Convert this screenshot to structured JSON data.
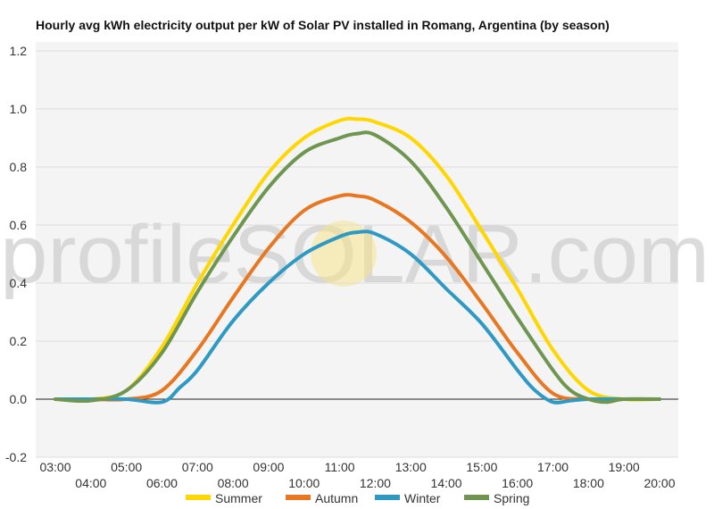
{
  "chart_data": {
    "type": "line",
    "title": "Hourly avg kWh electricity output per kW of Solar PV installed in Romang, Argentina (by season)",
    "xlabel": "",
    "ylabel": "",
    "x_ticks": [
      "03:00",
      "04:00",
      "05:00",
      "06:00",
      "07:00",
      "08:00",
      "09:00",
      "10:00",
      "11:00",
      "12:00",
      "13:00",
      "14:00",
      "15:00",
      "16:00",
      "17:00",
      "18:00",
      "19:00",
      "20:00"
    ],
    "y_ticks": [
      "1.2",
      "1.0",
      "0.8",
      "0.6",
      "0.4",
      "0.2",
      "0.0",
      "-0.2"
    ],
    "ylim": [
      -0.2,
      1.2
    ],
    "grid": true,
    "legend_position": "bottom",
    "watermark": "profileSOLAR.com",
    "series": [
      {
        "name": "Summer",
        "color": "#FFD700",
        "x": [
          3,
          4,
          5,
          6,
          7,
          8,
          9,
          10,
          11,
          11.5,
          12,
          13,
          14,
          15,
          16,
          17,
          18,
          19,
          20
        ],
        "values": [
          0,
          0,
          0.03,
          0.18,
          0.4,
          0.6,
          0.78,
          0.9,
          0.96,
          0.965,
          0.955,
          0.9,
          0.77,
          0.58,
          0.38,
          0.17,
          0.03,
          0,
          0
        ]
      },
      {
        "name": "Autumn",
        "color": "#E87722",
        "x": [
          3,
          4,
          5,
          6,
          7,
          8,
          9,
          10,
          11,
          11.5,
          12,
          13,
          14,
          15,
          16,
          17,
          18,
          19,
          20
        ],
        "values": [
          0,
          0,
          0,
          0.03,
          0.17,
          0.35,
          0.52,
          0.65,
          0.7,
          0.7,
          0.685,
          0.61,
          0.49,
          0.33,
          0.16,
          0.02,
          0,
          0,
          0
        ]
      },
      {
        "name": "Winter",
        "color": "#2E9AC4",
        "x": [
          3,
          4,
          5,
          6,
          6.5,
          7,
          8,
          9,
          10,
          11,
          11.5,
          12,
          13,
          14,
          15,
          16,
          16.5,
          17,
          17.5,
          18,
          19,
          20
        ],
        "values": [
          0,
          0,
          0,
          -0.01,
          0.04,
          0.1,
          0.27,
          0.4,
          0.5,
          0.56,
          0.575,
          0.57,
          0.5,
          0.38,
          0.26,
          0.1,
          0.03,
          -0.01,
          -0.005,
          0,
          0,
          0
        ]
      },
      {
        "name": "Spring",
        "color": "#6E9650",
        "x": [
          3,
          4,
          5,
          6,
          7,
          8,
          9,
          10,
          11,
          11.5,
          12,
          13,
          14,
          15,
          16,
          17,
          17.5,
          18,
          18.5,
          19,
          20
        ],
        "values": [
          0,
          -0.005,
          0.03,
          0.16,
          0.37,
          0.56,
          0.73,
          0.85,
          0.9,
          0.915,
          0.91,
          0.82,
          0.66,
          0.47,
          0.28,
          0.1,
          0.03,
          0,
          -0.01,
          0,
          0
        ]
      }
    ]
  }
}
